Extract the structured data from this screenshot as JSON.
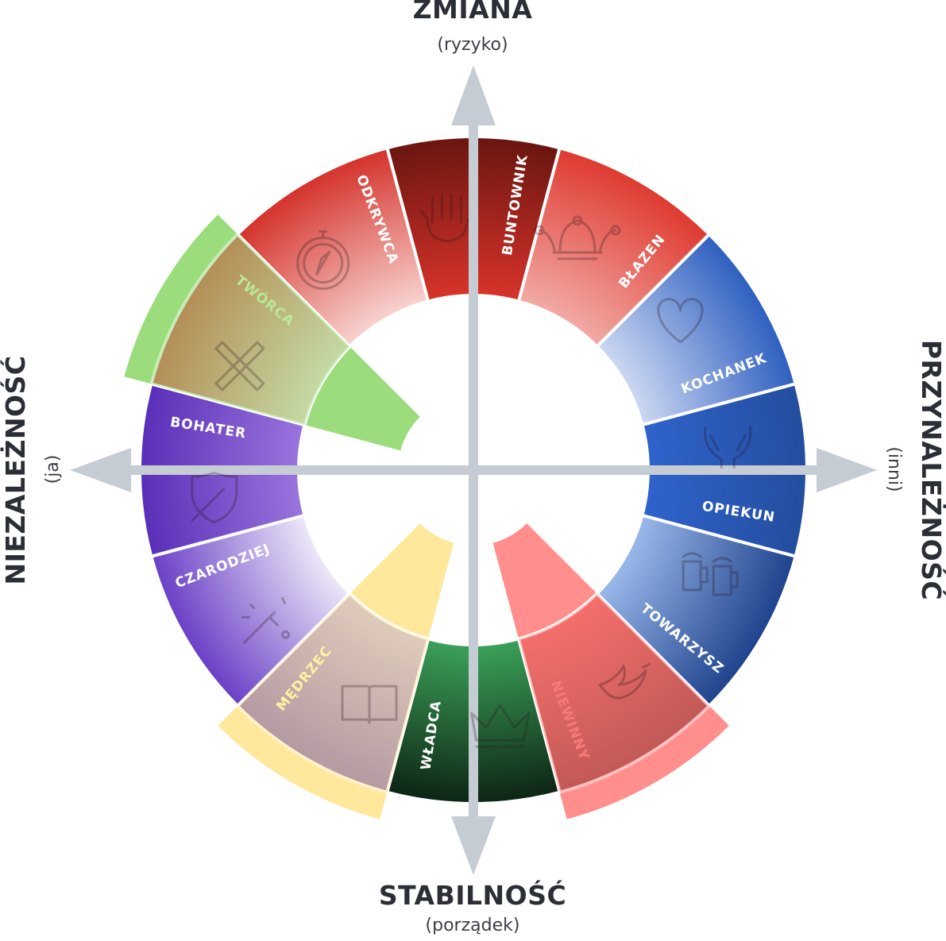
{
  "axes": {
    "top": {
      "title": "ZMIANA",
      "subtitle": "(ryzyko)"
    },
    "bottom": {
      "title": "STABILNOŚĆ",
      "subtitle": "(porządek)"
    },
    "left": {
      "title": "NIEZALEŻNOŚĆ",
      "subtitle": "(ja)"
    },
    "right": {
      "title": "PRZYNALEŻNOŚĆ",
      "subtitle": "(inni)"
    }
  },
  "segments": [
    {
      "id": "buntownik",
      "label": "BUNTOWNIK",
      "icon": "fist-icon",
      "angle": 90,
      "inner": "#d7332a",
      "outer": "#6a1510",
      "label_color": "#ffffff",
      "highlight": null
    },
    {
      "id": "blazen",
      "label": "BŁAZEN",
      "icon": "jester-hat-icon",
      "angle": 60,
      "inner": "#f2aaa5",
      "outer": "#de3a30",
      "label_color": "#ffffff",
      "highlight": null
    },
    {
      "id": "kochanek",
      "label": "KOCHANEK",
      "icon": "heart-icon",
      "angle": 30,
      "inner": "#ccd8f2",
      "outer": "#2e5fc0",
      "label_color": "#ffffff",
      "highlight": null
    },
    {
      "id": "opiekun",
      "label": "OPIEKUN",
      "icon": "caring-hands-icon",
      "angle": 0,
      "inner": "#2f63cc",
      "outer": "#244d9e",
      "label_color": "#ffffff",
      "highlight": null
    },
    {
      "id": "towarzysz",
      "label": "TOWARZYSZ",
      "icon": "beer-mugs-icon",
      "angle": -30,
      "inner": "#9ab8ea",
      "outer": "#1e428c",
      "label_color": "#ffffff",
      "highlight": null
    },
    {
      "id": "niewinny",
      "label": "NIEWINNY",
      "icon": "dove-icon",
      "angle": -60,
      "inner": "#e44a44",
      "outer": "#7a1b18",
      "label_color": "#f47b78",
      "highlight": "#ff8e8c"
    },
    {
      "id": "wladca",
      "label": "WŁADCA",
      "icon": "crown-icon",
      "angle": -90,
      "inner": "#3ba159",
      "outer": "#0d2414",
      "label_color": "#ffffff",
      "highlight": null
    },
    {
      "id": "medrzec",
      "label": "MĘDRZEC",
      "icon": "book-icon",
      "angle": -120,
      "inner": "#b9a9e0",
      "outer": "#5b3daa",
      "label_color": "#fff2a0",
      "highlight": "#ffe89c"
    },
    {
      "id": "czarodziej",
      "label": "CZARODZIEJ",
      "icon": "magic-wand-icon",
      "angle": -150,
      "inner": "#ede8f8",
      "outer": "#6a3fc6",
      "label_color": "#ffffff",
      "highlight": null
    },
    {
      "id": "bohater",
      "label": "BOHATER",
      "icon": "shield-sword-icon",
      "angle": 180,
      "inner": "#9a74dd",
      "outer": "#5a2fb8",
      "label_color": "#ffffff",
      "highlight": null
    },
    {
      "id": "tworca",
      "label": "TWÓRCA",
      "icon": "pencil-ruler-icon",
      "angle": 150,
      "inner": "#f7d6d4",
      "outer": "#d2302a",
      "label_color": "#b9e99a",
      "highlight": "#9bdc7c"
    },
    {
      "id": "odkrywca",
      "label": "ODKRYWCA",
      "icon": "compass-icon",
      "angle": 120,
      "inner": "#f8d3d0",
      "outer": "#d4322b",
      "label_color": "#ffffff",
      "highlight": null
    }
  ]
}
